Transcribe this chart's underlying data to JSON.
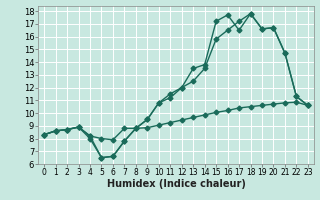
{
  "title": "",
  "xlabel": "Humidex (Indice chaleur)",
  "bg_color": "#c8e8e0",
  "grid_color": "#ffffff",
  "line_color": "#1a6b5a",
  "xlim": [
    -0.5,
    23.5
  ],
  "ylim": [
    6,
    18.4
  ],
  "xticks": [
    0,
    1,
    2,
    3,
    4,
    5,
    6,
    7,
    8,
    9,
    10,
    11,
    12,
    13,
    14,
    15,
    16,
    17,
    18,
    19,
    20,
    21,
    22,
    23
  ],
  "yticks": [
    6,
    7,
    8,
    9,
    10,
    11,
    12,
    13,
    14,
    15,
    16,
    17,
    18
  ],
  "line1_x": [
    0,
    1,
    2,
    3,
    4,
    5,
    6,
    7,
    8,
    9,
    10,
    11,
    12,
    13,
    14,
    15,
    16,
    17,
    18,
    19,
    20,
    21,
    22,
    23
  ],
  "line1_y": [
    8.3,
    8.6,
    8.7,
    8.9,
    8.0,
    6.5,
    6.6,
    7.8,
    8.8,
    8.85,
    9.05,
    9.25,
    9.45,
    9.65,
    9.85,
    10.05,
    10.2,
    10.4,
    10.5,
    10.6,
    10.7,
    10.8,
    10.85,
    10.6
  ],
  "line2_x": [
    0,
    1,
    2,
    3,
    4,
    5,
    6,
    7,
    8,
    9,
    10,
    11,
    12,
    13,
    14,
    15,
    16,
    17,
    18,
    19,
    20,
    21,
    22,
    23
  ],
  "line2_y": [
    8.3,
    8.6,
    8.7,
    8.9,
    8.2,
    8.0,
    7.9,
    8.8,
    8.8,
    9.5,
    10.8,
    11.5,
    12.0,
    12.5,
    13.5,
    15.8,
    16.5,
    17.2,
    17.8,
    16.6,
    16.7,
    14.7,
    11.3,
    10.6
  ],
  "line3_x": [
    0,
    1,
    2,
    3,
    4,
    5,
    6,
    7,
    8,
    9,
    10,
    11,
    12,
    13,
    14,
    15,
    16,
    17,
    18,
    19,
    20,
    21,
    22,
    23
  ],
  "line3_y": [
    8.3,
    8.6,
    8.7,
    8.9,
    8.2,
    6.5,
    6.6,
    7.8,
    8.8,
    9.5,
    10.8,
    11.2,
    12.0,
    13.5,
    13.8,
    17.2,
    17.7,
    16.5,
    17.8,
    16.6,
    16.7,
    14.7,
    11.3,
    10.6
  ],
  "marker_size": 2.5,
  "line_width": 1.0,
  "font_size": 7,
  "xlabel_fontsize": 7,
  "tick_fontsize": 5.5
}
